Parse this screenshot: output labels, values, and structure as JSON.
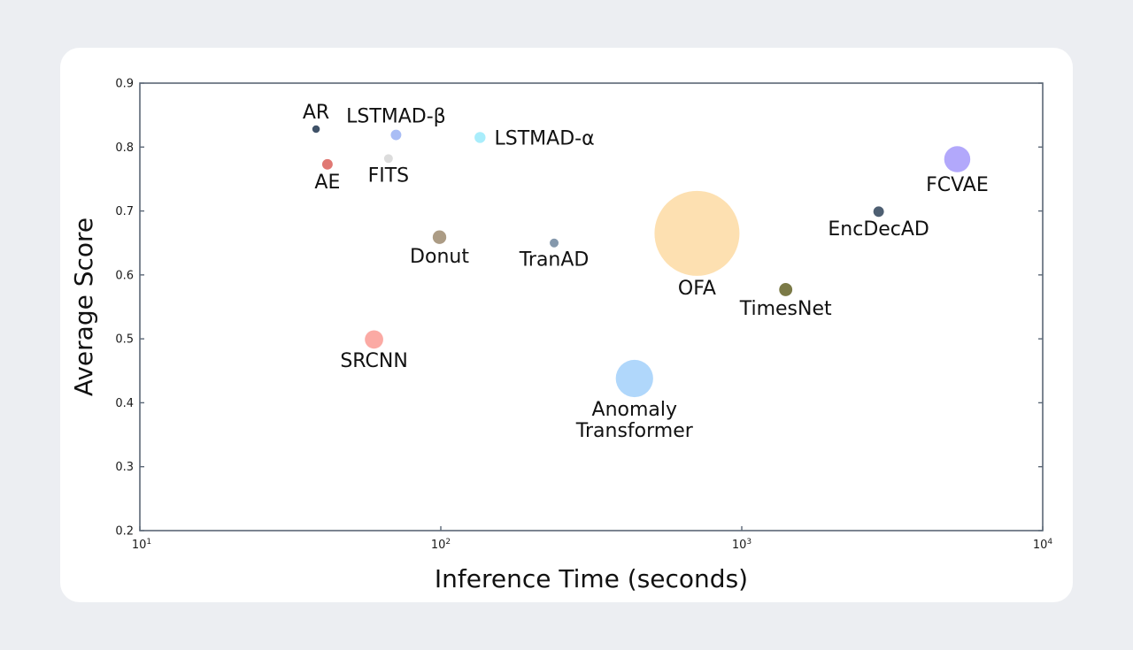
{
  "chart_data": {
    "type": "scatter",
    "xlabel": "Inference Time (seconds)",
    "ylabel": "Average Score",
    "x_scale": "log",
    "xlim": [
      10,
      10000
    ],
    "ylim": [
      0.2,
      0.9
    ],
    "x_ticks": [
      {
        "value": 10,
        "base": "10",
        "exp": "1"
      },
      {
        "value": 100,
        "base": "10",
        "exp": "2"
      },
      {
        "value": 1000,
        "base": "10",
        "exp": "3"
      },
      {
        "value": 10000,
        "base": "10",
        "exp": "4"
      }
    ],
    "y_ticks": [
      {
        "value": 0.2,
        "label": "0.2"
      },
      {
        "value": 0.3,
        "label": "0.3"
      },
      {
        "value": 0.4,
        "label": "0.4"
      },
      {
        "value": 0.5,
        "label": "0.5"
      },
      {
        "value": 0.6,
        "label": "0.6"
      },
      {
        "value": 0.7,
        "label": "0.7"
      },
      {
        "value": 0.8,
        "label": "0.8"
      },
      {
        "value": 0.9,
        "label": "0.9"
      }
    ],
    "grid": false,
    "points": [
      {
        "name": "AR",
        "x": 38.5,
        "y": 0.828,
        "size": 1,
        "color": "#3f5268",
        "label_pos": "above",
        "lines": [
          "AR"
        ]
      },
      {
        "name": "LSTMAD-β",
        "x": 71,
        "y": 0.819,
        "size": 8,
        "color": "#a9bdf5",
        "label_pos": "above",
        "lines": [
          "LSTMAD-β"
        ]
      },
      {
        "name": "LSTMAD-α",
        "x": 135,
        "y": 0.815,
        "size": 9,
        "color": "#a9edfb",
        "label_pos": "right",
        "lines": [
          "LSTMAD-α"
        ]
      },
      {
        "name": "FITS",
        "x": 67,
        "y": 0.782,
        "size": 4,
        "color": "#dcdcdc",
        "label_pos": "below",
        "lines": [
          "FITS"
        ]
      },
      {
        "name": "AE",
        "x": 42,
        "y": 0.773,
        "size": 8,
        "color": "#e07873",
        "label_pos": "below",
        "lines": [
          "AE"
        ]
      },
      {
        "name": "Donut",
        "x": 99,
        "y": 0.659,
        "size": 15,
        "color": "#ac9c85",
        "label_pos": "below",
        "lines": [
          "Donut"
        ]
      },
      {
        "name": "TranAD",
        "x": 238,
        "y": 0.65,
        "size": 4,
        "color": "#8498ac",
        "label_pos": "below",
        "lines": [
          "TranAD"
        ]
      },
      {
        "name": "SRCNN",
        "x": 60,
        "y": 0.499,
        "size": 26,
        "color": "#fbaaa4",
        "label_pos": "below",
        "lines": [
          "SRCNN"
        ]
      },
      {
        "name": "Anomaly Transformer",
        "x": 440,
        "y": 0.438,
        "size": 70,
        "color": "#b0d7fb",
        "label_pos": "below",
        "lines": [
          "Anomaly",
          "Transformer"
        ]
      },
      {
        "name": "OFA",
        "x": 710,
        "y": 0.665,
        "size": 180,
        "color": "#fde0b1",
        "label_pos": "below",
        "lines": [
          "OFA"
        ]
      },
      {
        "name": "TimesNet",
        "x": 1400,
        "y": 0.577,
        "size": 14,
        "color": "#7b7a47",
        "label_pos": "below",
        "lines": [
          "TimesNet"
        ]
      },
      {
        "name": "EncDecAD",
        "x": 2850,
        "y": 0.699,
        "size": 8,
        "color": "#4e5f72",
        "label_pos": "below",
        "lines": [
          "EncDecAD"
        ]
      },
      {
        "name": "FCVAE",
        "x": 5200,
        "y": 0.781,
        "size": 44,
        "color": "#b2a8fb",
        "label_pos": "below",
        "lines": [
          "FCVAE"
        ]
      }
    ]
  }
}
